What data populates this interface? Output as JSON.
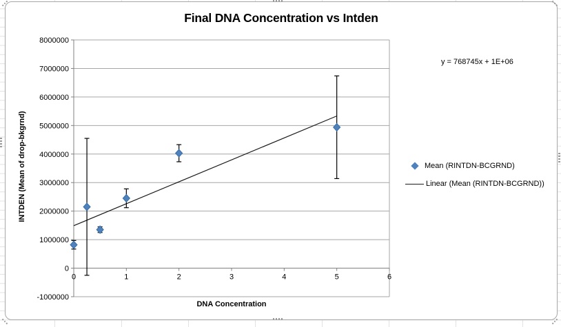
{
  "chart_data": {
    "type": "scatter",
    "title": "Final DNA Concentration vs Intden",
    "xlabel": "DNA Concentration",
    "ylabel": "INTDEN (Mean of drop-bkgrnd)",
    "xlim": [
      0,
      6
    ],
    "ylim": [
      -1000000,
      8000000
    ],
    "x_ticks": [
      0,
      1,
      2,
      3,
      4,
      5,
      6
    ],
    "x_tick_labels": [
      "0",
      "1",
      "2",
      "3",
      "4",
      "5",
      "6"
    ],
    "y_ticks": [
      -1000000,
      0,
      1000000,
      2000000,
      3000000,
      4000000,
      5000000,
      6000000,
      7000000,
      8000000
    ],
    "y_tick_labels": [
      "-1000000",
      "0",
      "1000000",
      "2000000",
      "3000000",
      "4000000",
      "5000000",
      "6000000",
      "7000000",
      "8000000"
    ],
    "grid": "horizontal",
    "legend_position": "right",
    "series": [
      {
        "name": "Mean (RINTDN-BCGRND)",
        "marker": "diamond",
        "color": "#4F81BD",
        "points": [
          {
            "x": 0,
            "y": 820000,
            "err": 150000
          },
          {
            "x": 0.25,
            "y": 2150000,
            "err": 2400000
          },
          {
            "x": 0.5,
            "y": 1350000,
            "err": 100000
          },
          {
            "x": 1,
            "y": 2450000,
            "err": 330000
          },
          {
            "x": 2,
            "y": 4030000,
            "err": 300000
          },
          {
            "x": 5,
            "y": 4940000,
            "err": 1800000
          }
        ]
      }
    ],
    "trendline": {
      "name": "Linear (Mean (RINTDN-BCGRND))",
      "color": "#1a1a1a",
      "slope": 768745,
      "intercept": 1490000,
      "x_start": 0,
      "x_end": 5,
      "equation": "y = 768745x + 1E+06"
    },
    "colors": {
      "marker": "#4F81BD",
      "gridline": "#a6a6a6",
      "axis": "#808080",
      "error_bar": "#000000",
      "chart_border": "#a6a6a6"
    }
  }
}
